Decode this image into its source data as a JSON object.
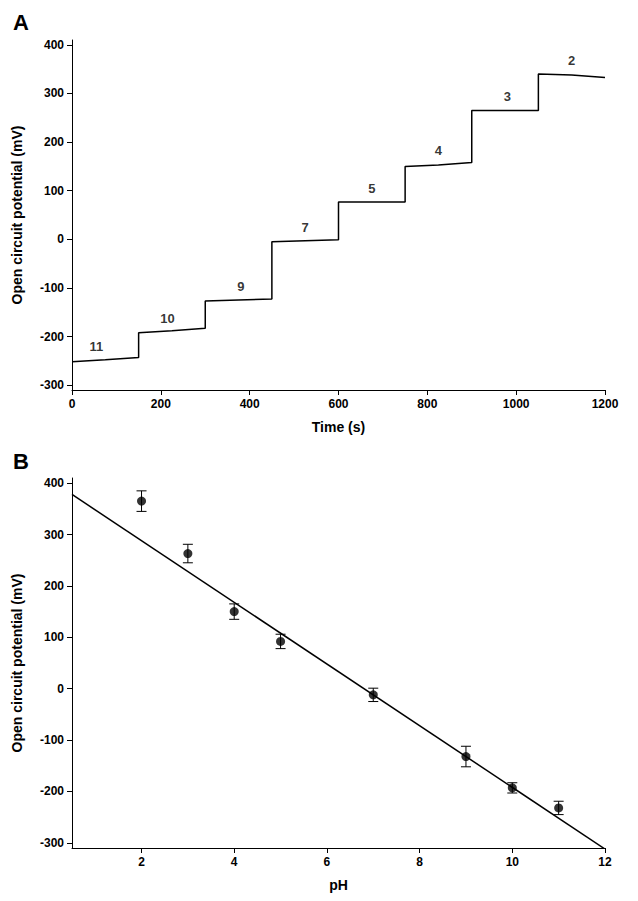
{
  "chart_data": [
    {
      "type": "line",
      "title": "A",
      "x_label": "Time (s)",
      "y_label": "Open circuit potential (mV)",
      "x": [
        0,
        75,
        150,
        150,
        225,
        300,
        300,
        375,
        450,
        450,
        525,
        600,
        600,
        675,
        750,
        750,
        825,
        900,
        900,
        975,
        1050,
        1050,
        1125,
        1200
      ],
      "values": [
        -252,
        -248,
        -243,
        -192,
        -188,
        -183,
        -127,
        -125,
        -123,
        -5,
        -3,
        -1,
        77,
        77,
        77,
        150,
        153,
        158,
        265,
        265,
        265,
        340,
        338,
        333
      ],
      "color": "#000000",
      "line_style": "solid",
      "xlim": [
        0,
        1200
      ],
      "xticks": [
        0,
        200,
        400,
        600,
        800,
        1000,
        1200
      ],
      "ylim": [
        -310,
        410
      ],
      "yticks": [
        -300,
        -200,
        -100,
        0,
        100,
        200,
        300,
        400
      ],
      "grid": false,
      "annotations": [
        {
          "x": 55,
          "y": -220,
          "text": "11"
        },
        {
          "x": 215,
          "y": -162,
          "text": "10"
        },
        {
          "x": 380,
          "y": -97,
          "text": "9"
        },
        {
          "x": 525,
          "y": 25,
          "text": "7"
        },
        {
          "x": 675,
          "y": 105,
          "text": "5"
        },
        {
          "x": 825,
          "y": 182,
          "text": "4"
        },
        {
          "x": 980,
          "y": 293,
          "text": "3"
        },
        {
          "x": 1125,
          "y": 368,
          "text": "2"
        }
      ]
    },
    {
      "type": "scatter",
      "title": "B",
      "x_label": "pH",
      "y_label": "Open circuit potential (mV)",
      "x": [
        2,
        3,
        4,
        5,
        7,
        9,
        10,
        11
      ],
      "values": [
        365,
        263,
        150,
        92,
        -12,
        -132,
        -193,
        -232
      ],
      "errors": [
        20,
        18,
        15,
        14,
        13,
        20,
        10,
        13
      ],
      "fit": {
        "x": [
          0.5,
          12
        ],
        "y": [
          378,
          -312
        ]
      },
      "color": "#000000",
      "marker": "circle",
      "line_style": "solid",
      "xlim": [
        0.5,
        12
      ],
      "xticks": [
        2,
        4,
        6,
        8,
        10,
        12
      ],
      "ylim": [
        -310,
        410
      ],
      "yticks": [
        -300,
        -200,
        -100,
        0,
        100,
        200,
        300,
        400
      ],
      "grid": false
    }
  ]
}
